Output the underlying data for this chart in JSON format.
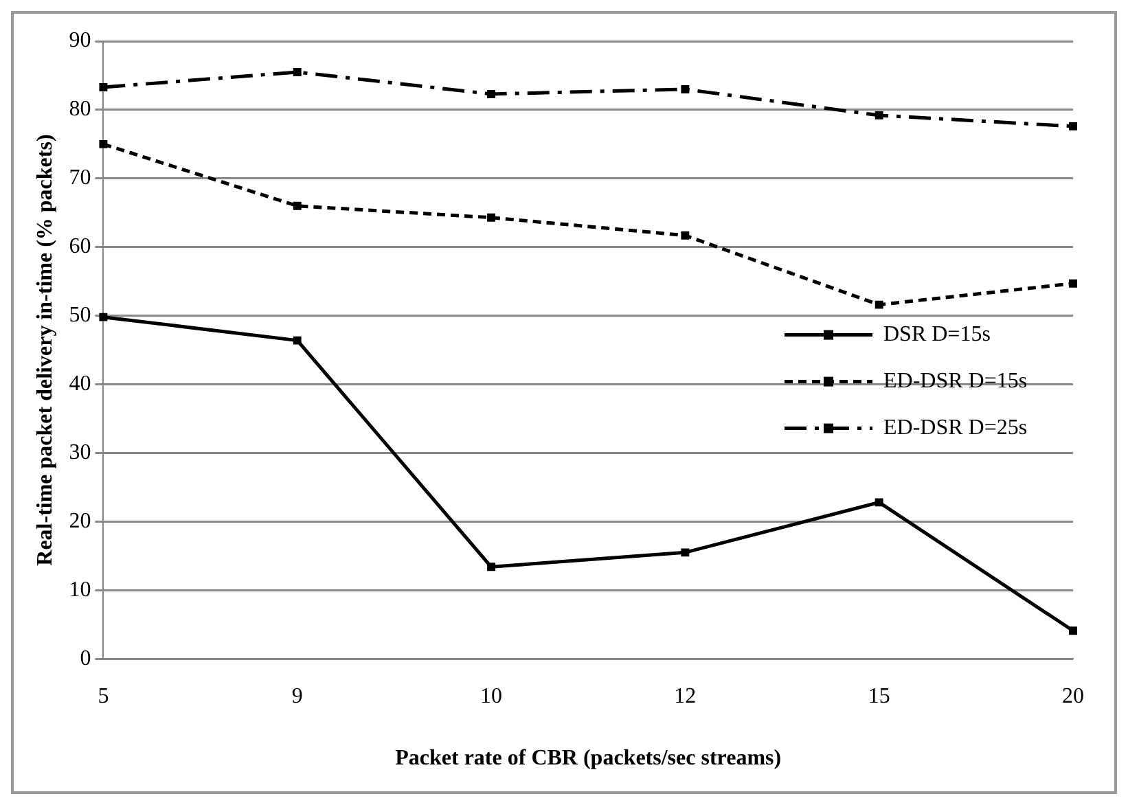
{
  "chart_data": {
    "type": "line",
    "xlabel": "Packet rate of CBR (packets/sec streams)",
    "ylabel": "Real-time packet delivery in-time (% packets)",
    "categories": [
      "5",
      "9",
      "10",
      "12",
      "15",
      "20"
    ],
    "ylim": [
      0,
      90
    ],
    "yticks": [
      0,
      10,
      20,
      30,
      40,
      50,
      60,
      70,
      80,
      90
    ],
    "grid": "y",
    "legend": "right",
    "marker": "square",
    "series": [
      {
        "name": "DSR D=15s",
        "color": "#000000",
        "line_style": "solid",
        "values": [
          49.8,
          46.4,
          13.4,
          15.5,
          22.8,
          4.1
        ]
      },
      {
        "name": "ED-DSR D=15s",
        "color": "#000000",
        "line_style": "dashed",
        "values": [
          75.0,
          66.0,
          64.3,
          61.7,
          51.6,
          54.7
        ]
      },
      {
        "name": "ED-DSR D=25s",
        "color": "#000000",
        "line_style": "dashdot",
        "values": [
          83.3,
          85.5,
          82.3,
          83.0,
          79.2,
          77.6
        ]
      }
    ]
  }
}
